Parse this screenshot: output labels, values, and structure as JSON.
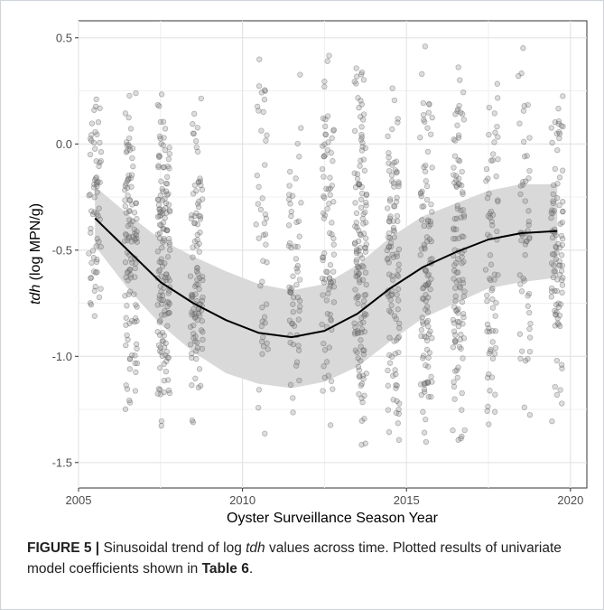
{
  "chart_data": {
    "type": "scatter",
    "xlabel": "Oyster Surveillance Season Year",
    "ylabel_italic": "tdh",
    "ylabel_rest": " (log MPN/g)",
    "xlim": [
      2005,
      2020.5
    ],
    "ylim": [
      -1.62,
      0.58
    ],
    "x_ticks": [
      2005,
      2010,
      2015,
      2020
    ],
    "y_ticks": [
      -1.5,
      -1.0,
      -0.5,
      0.0,
      0.5
    ],
    "y_tick_labels": [
      "-1.5",
      "-1.0",
      "-0.5",
      "0.0",
      "0.5"
    ],
    "grid": true,
    "point_color": "#808080",
    "trend_color": "#000000",
    "band_color": "#d9d9d9",
    "seasons": [
      {
        "x": 2005.5,
        "n": 65,
        "lo": -0.9,
        "hi": 0.3
      },
      {
        "x": 2006.6,
        "n": 110,
        "lo": -1.4,
        "hi": 0.45
      },
      {
        "x": 2007.6,
        "n": 150,
        "lo": -1.5,
        "hi": 0.38
      },
      {
        "x": 2008.6,
        "n": 105,
        "lo": -1.48,
        "hi": 0.25
      },
      {
        "x": 2010.6,
        "n": 45,
        "lo": -1.45,
        "hi": 0.49
      },
      {
        "x": 2011.6,
        "n": 60,
        "lo": -1.48,
        "hi": 0.46
      },
      {
        "x": 2012.6,
        "n": 85,
        "lo": -1.46,
        "hi": 0.48
      },
      {
        "x": 2013.6,
        "n": 140,
        "lo": -1.45,
        "hi": 0.48
      },
      {
        "x": 2014.6,
        "n": 110,
        "lo": -1.48,
        "hi": 0.45
      },
      {
        "x": 2015.6,
        "n": 110,
        "lo": -1.5,
        "hi": 0.49
      },
      {
        "x": 2016.6,
        "n": 115,
        "lo": -1.5,
        "hi": 0.48
      },
      {
        "x": 2017.6,
        "n": 70,
        "lo": -1.5,
        "hi": 0.44
      },
      {
        "x": 2018.6,
        "n": 55,
        "lo": -1.4,
        "hi": 0.47
      },
      {
        "x": 2019.6,
        "n": 95,
        "lo": -1.4,
        "hi": 0.47
      }
    ],
    "trend": {
      "x": [
        2005.5,
        2006.5,
        2007.5,
        2008.5,
        2009.5,
        2010.5,
        2011.5,
        2012.5,
        2013.5,
        2014.5,
        2015.5,
        2016.5,
        2017.5,
        2018.5,
        2019.6
      ],
      "y": [
        -0.35,
        -0.5,
        -0.65,
        -0.75,
        -0.83,
        -0.89,
        -0.91,
        -0.88,
        -0.8,
        -0.68,
        -0.58,
        -0.51,
        -0.45,
        -0.42,
        -0.41
      ],
      "lower": [
        -0.48,
        -0.68,
        -0.85,
        -0.98,
        -1.08,
        -1.13,
        -1.15,
        -1.12,
        -1.05,
        -0.93,
        -0.82,
        -0.75,
        -0.68,
        -0.65,
        -0.63
      ],
      "upper": [
        -0.2,
        -0.33,
        -0.45,
        -0.53,
        -0.6,
        -0.66,
        -0.69,
        -0.66,
        -0.57,
        -0.44,
        -0.34,
        -0.28,
        -0.22,
        -0.19,
        -0.19
      ]
    }
  },
  "caption": {
    "figure_label": "FIGURE 5 | ",
    "text_1": "Sinusoidal trend of log ",
    "italic_term": "tdh",
    "text_2": " values across time. Plotted results of univariate model coefficients shown in ",
    "table_ref": "Table 6",
    "text_3": "."
  }
}
